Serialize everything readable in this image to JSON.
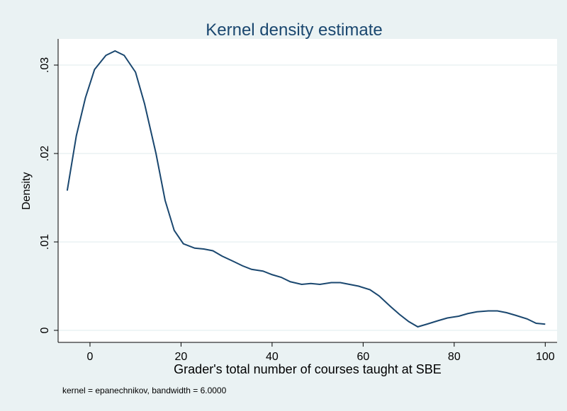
{
  "chart_data": {
    "type": "line",
    "title": "Kernel density estimate",
    "xlabel": "Grader's total number of courses taught at SBE",
    "ylabel": "Density",
    "note": "kernel = epanechnikov, bandwidth = 6.0000",
    "color": "#1a476f",
    "grid": true,
    "x": [
      -5,
      -3,
      -1,
      1,
      3.5,
      5.5,
      7.5,
      10,
      12,
      14.5,
      16.5,
      18.5,
      20.5,
      23,
      25,
      27,
      29,
      31.5,
      33.5,
      35.5,
      38,
      40,
      42,
      44,
      46.5,
      48.5,
      50.5,
      53,
      55,
      57,
      59,
      61.5,
      63.5,
      66,
      68,
      70,
      72,
      74,
      76.5,
      78.5,
      81,
      83,
      85,
      87.5,
      89.5,
      91.5,
      93.5,
      96,
      98,
      100
    ],
    "values": [
      0.0158,
      0.022,
      0.0263,
      0.0295,
      0.0311,
      0.0316,
      0.0311,
      0.0292,
      0.0256,
      0.02,
      0.0147,
      0.0113,
      0.0098,
      0.0093,
      0.0092,
      0.009,
      0.0084,
      0.0078,
      0.0073,
      0.0069,
      0.0067,
      0.0063,
      0.006,
      0.0055,
      0.0052,
      0.0053,
      0.0052,
      0.0054,
      0.0054,
      0.0052,
      0.005,
      0.0046,
      0.0039,
      0.0027,
      0.0018,
      0.001,
      0.0004,
      0.0007,
      0.0011,
      0.0014,
      0.0016,
      0.0019,
      0.0021,
      0.0022,
      0.0022,
      0.002,
      0.0017,
      0.0013,
      0.0008,
      0.0007
    ],
    "xlim": [
      -7,
      102.6
    ],
    "xticks": [
      0,
      20,
      40,
      60,
      80,
      100
    ],
    "ylim": [
      -0.00136,
      0.03296
    ],
    "yticks": [
      0,
      {
        "value": 0.01,
        "label": ".01"
      },
      {
        "value": 0.02,
        "label": ".02"
      },
      {
        "value": 0.03,
        "label": ".03"
      }
    ]
  }
}
